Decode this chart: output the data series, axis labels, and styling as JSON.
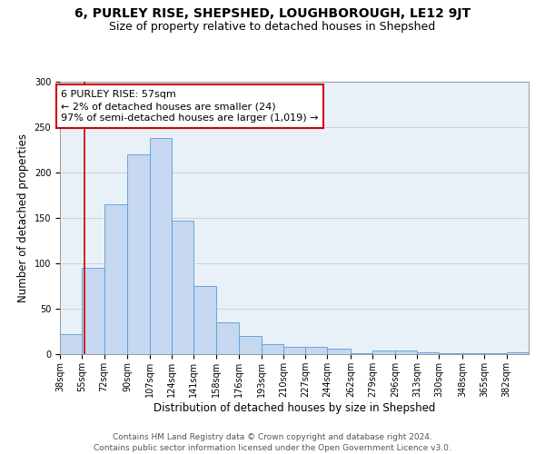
{
  "title": "6, PURLEY RISE, SHEPSHED, LOUGHBOROUGH, LE12 9JT",
  "subtitle": "Size of property relative to detached houses in Shepshed",
  "xlabel": "Distribution of detached houses by size in Shepshed",
  "ylabel": "Number of detached properties",
  "bins": [
    "38sqm",
    "55sqm",
    "72sqm",
    "90sqm",
    "107sqm",
    "124sqm",
    "141sqm",
    "158sqm",
    "176sqm",
    "193sqm",
    "210sqm",
    "227sqm",
    "244sqm",
    "262sqm",
    "279sqm",
    "296sqm",
    "313sqm",
    "330sqm",
    "348sqm",
    "365sqm",
    "382sqm"
  ],
  "bin_edges": [
    38,
    55,
    72,
    90,
    107,
    124,
    141,
    158,
    176,
    193,
    210,
    227,
    244,
    262,
    279,
    296,
    313,
    330,
    348,
    365,
    382,
    399
  ],
  "heights": [
    22,
    95,
    165,
    220,
    238,
    147,
    75,
    35,
    20,
    11,
    8,
    8,
    6,
    1,
    4,
    4,
    2,
    1,
    1,
    1,
    2
  ],
  "bar_facecolor": "#c5d8f0",
  "bar_edgecolor": "#5b9bd5",
  "grid_color": "#cccccc",
  "background_color": "#e8f0f8",
  "red_line_x": 57,
  "annotation_text": "6 PURLEY RISE: 57sqm\n← 2% of detached houses are smaller (24)\n97% of semi-detached houses are larger (1,019) →",
  "annotation_box_color": "#ffffff",
  "annotation_box_edgecolor": "#cc0000",
  "ylim": [
    0,
    300
  ],
  "yticks": [
    0,
    50,
    100,
    150,
    200,
    250,
    300
  ],
  "footer_line1": "Contains HM Land Registry data © Crown copyright and database right 2024.",
  "footer_line2": "Contains public sector information licensed under the Open Government Licence v3.0.",
  "title_fontsize": 10,
  "subtitle_fontsize": 9,
  "axis_label_fontsize": 8.5,
  "tick_fontsize": 7,
  "annotation_fontsize": 8,
  "footer_fontsize": 6.5
}
